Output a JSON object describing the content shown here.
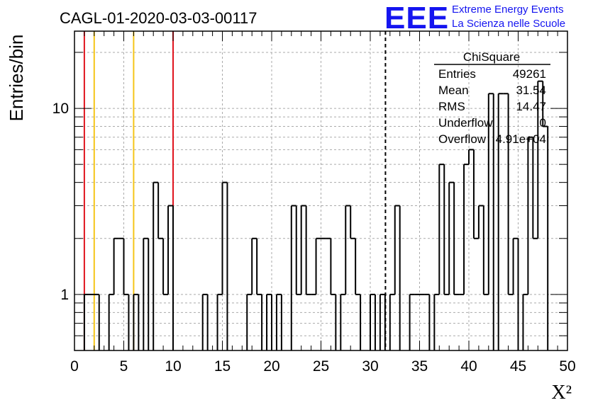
{
  "header": {
    "title": "CAGL-01-2020-03-03-00117",
    "logo_mark": "EEE",
    "logo_line1": "Extreme Energy Events",
    "logo_line2": "La Scienza nelle Scuole"
  },
  "colors": {
    "brand": "#1515f0",
    "red_marker": "#e0141e",
    "yellow_marker": "#f5c518",
    "histogram": "#000000",
    "grid": "#aaaaaa"
  },
  "stats_box": {
    "name": "ChiSquare",
    "rows": [
      {
        "label": "Entries",
        "value": "49261"
      },
      {
        "label": "Mean",
        "value": "31.54"
      },
      {
        "label": "RMS",
        "value": "14.47"
      },
      {
        "label": "Underflow",
        "value": "0"
      },
      {
        "label": "Overflow",
        "value": "4.91e+04"
      }
    ]
  },
  "chart_data": {
    "type": "bar",
    "histogram": "step",
    "title": "CAGL-01-2020-03-03-00117",
    "xlabel": "X²",
    "ylabel": "Entries/bin",
    "xlim": [
      0,
      50
    ],
    "ylim": [
      0.5,
      26
    ],
    "ylog": true,
    "grid": true,
    "legend": "stats box top-right",
    "x_ticks": [
      0,
      5,
      10,
      15,
      20,
      25,
      30,
      35,
      40,
      45,
      50
    ],
    "y_ticks": [
      1,
      10
    ],
    "bin_width": 0.5,
    "x_start": 1,
    "values": [
      1,
      1,
      1,
      0,
      0,
      1,
      2,
      2,
      1,
      0,
      1,
      0,
      2,
      0,
      4,
      2,
      1,
      3,
      0,
      0,
      0,
      0,
      0,
      0,
      1,
      0,
      0,
      1,
      4,
      0,
      0,
      0,
      0,
      1,
      2,
      1,
      0,
      1,
      0,
      1,
      0,
      0,
      3,
      1,
      3,
      1,
      1,
      2,
      2,
      2,
      1,
      0,
      1,
      3,
      2,
      1,
      0,
      0,
      1,
      0,
      1,
      0,
      1,
      3,
      0,
      0,
      1,
      1,
      1,
      1,
      0,
      1,
      5,
      1,
      4,
      1,
      1,
      5,
      6,
      2,
      3,
      1,
      12,
      0,
      12,
      12,
      1,
      2,
      0,
      1,
      7,
      2,
      14,
      8
    ],
    "vertical_markers": [
      {
        "x": 1,
        "color": "red"
      },
      {
        "x": 10,
        "color": "red"
      },
      {
        "x": 2,
        "color": "yellow"
      },
      {
        "x": 6,
        "color": "yellow"
      },
      {
        "x": 31.54,
        "color": "black",
        "style": "dashed"
      }
    ]
  }
}
